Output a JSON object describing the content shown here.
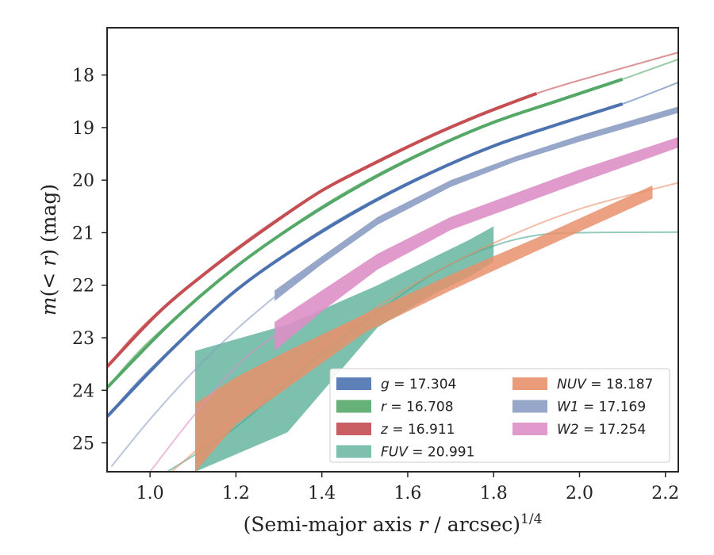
{
  "chart_data": {
    "type": "line",
    "xlabel_main": "(Semi-major axis ",
    "xlabel_var": "r",
    "xlabel_unit": " / arcsec)",
    "xlabel_exp": "1/4",
    "ylabel_pre": "m(< ",
    "ylabel_var": "r",
    "ylabel_post": ") (mag)",
    "xlim": [
      0.9,
      2.23
    ],
    "ylim": [
      25.55,
      17.1
    ],
    "y_inverted": true,
    "grid": false,
    "legend_placement": "lower-right",
    "x_ticks": [
      1.0,
      1.2,
      1.4,
      1.6,
      1.8,
      2.0,
      2.2
    ],
    "x_tick_labels": [
      "1.0",
      "1.2",
      "1.4",
      "1.6",
      "1.8",
      "2.0",
      "2.2"
    ],
    "y_ticks": [
      18,
      19,
      20,
      21,
      22,
      23,
      24,
      25
    ],
    "y_tick_labels": [
      "18",
      "19",
      "20",
      "21",
      "22",
      "23",
      "24",
      "25"
    ],
    "series": [
      {
        "key": "g",
        "legend_var": "g",
        "legend_value": " = 17.304",
        "color": "#4c72b0",
        "model_x": [
          0.9,
          1.0,
          1.2,
          1.4,
          1.6,
          1.8,
          2.0,
          2.1,
          2.23
        ],
        "model_y": [
          24.5,
          23.6,
          22.1,
          20.95,
          20.05,
          19.35,
          18.8,
          18.55,
          18.14
        ],
        "band_x_range": [
          0.9,
          2.1
        ],
        "band_half_width": 0.04
      },
      {
        "key": "r",
        "legend_var": "r",
        "legend_value": " = 16.708",
        "color": "#55a868",
        "model_x": [
          0.9,
          1.0,
          1.2,
          1.4,
          1.6,
          1.8,
          2.0,
          2.1,
          2.23
        ],
        "model_y": [
          23.95,
          23.05,
          21.65,
          20.5,
          19.6,
          18.9,
          18.35,
          18.08,
          17.7
        ],
        "band_x_range": [
          0.9,
          2.1
        ],
        "band_half_width": 0.05
      },
      {
        "key": "z",
        "legend_var": "z",
        "legend_value": " = 16.911",
        "color": "#c44e52",
        "model_x": [
          0.9,
          1.0,
          1.2,
          1.4,
          1.6,
          1.8,
          1.9,
          2.0,
          2.23
        ],
        "model_y": [
          23.55,
          22.65,
          21.3,
          20.2,
          19.35,
          18.65,
          18.35,
          18.1,
          17.57
        ],
        "band_x_range": [
          0.9,
          1.9
        ],
        "band_half_width": 0.06
      },
      {
        "key": "FUV",
        "legend_var": "FUV",
        "legend_value": " = 20.991",
        "color": "#4aa88d",
        "model_x": [
          1.04,
          1.2,
          1.4,
          1.6,
          1.7,
          1.8,
          1.9,
          2.0,
          2.23
        ],
        "model_y": [
          25.55,
          24.7,
          23.3,
          22.1,
          21.6,
          21.25,
          21.05,
          21.0,
          20.99
        ],
        "band_x": [
          1.105,
          1.32,
          1.53,
          1.665,
          1.74,
          1.8
        ],
        "band_top": [
          23.25,
          22.75,
          22.0,
          21.45,
          21.15,
          20.88
        ],
        "band_bot": [
          25.55,
          24.8,
          22.8,
          22.15,
          21.85,
          21.55
        ]
      },
      {
        "key": "NUV",
        "legend_var": "NUV",
        "legend_value": " = 18.187",
        "color": "#e8916c",
        "model_x": [
          1.05,
          1.2,
          1.4,
          1.6,
          1.8,
          2.0,
          2.23
        ],
        "model_y": [
          25.55,
          24.5,
          23.15,
          22.05,
          21.2,
          20.55,
          20.05
        ],
        "band_x": [
          1.105,
          1.2,
          1.32,
          1.5,
          1.7,
          1.9,
          2.17
        ],
        "band_top": [
          24.25,
          23.75,
          23.25,
          22.55,
          21.8,
          21.1,
          20.1
        ],
        "band_bot": [
          25.55,
          24.65,
          23.95,
          22.9,
          22.1,
          21.35,
          20.35
        ]
      },
      {
        "key": "W1",
        "legend_var": "W1",
        "legend_value": " = 17.169",
        "color": "#8c9dc4",
        "model_x": [
          0.91,
          1.0,
          1.1,
          1.2,
          1.29
        ],
        "model_y": [
          25.45,
          24.55,
          23.65,
          22.85,
          22.22
        ],
        "band_x": [
          1.29,
          1.4,
          1.53,
          1.7,
          1.85,
          2.0,
          2.23
        ],
        "band_top": [
          22.1,
          21.45,
          20.7,
          20.0,
          19.55,
          19.15,
          18.6
        ],
        "band_bot": [
          22.3,
          21.6,
          20.85,
          20.13,
          19.65,
          19.27,
          18.72
        ]
      },
      {
        "key": "W2",
        "legend_var": "W2",
        "legend_value": " = 17.254",
        "color": "#dd8fc6",
        "model_x": [
          1.0,
          1.1,
          1.2,
          1.29
        ],
        "model_y": [
          25.55,
          24.5,
          23.55,
          22.95
        ],
        "band_x": [
          1.29,
          1.4,
          1.53,
          1.7,
          1.85,
          2.0,
          2.23
        ],
        "band_top": [
          22.7,
          22.1,
          21.4,
          20.7,
          20.25,
          19.8,
          19.18
        ],
        "band_bot": [
          23.25,
          22.5,
          21.7,
          20.95,
          20.5,
          20.05,
          19.38
        ]
      }
    ]
  }
}
